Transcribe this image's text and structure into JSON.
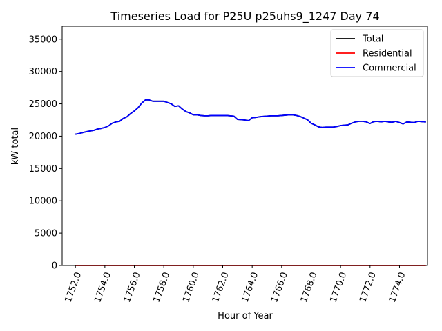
{
  "chart_data": {
    "type": "line",
    "title": "Timeseries Load for P25U p25uhs9_1247  Day 74",
    "xlabel": "Hour of Year",
    "ylabel": "kW total",
    "xlim": [
      1751.1,
      1775.9
    ],
    "ylim": [
      0,
      37000
    ],
    "xticks": [
      1752,
      1754,
      1756,
      1758,
      1760,
      1762,
      1764,
      1766,
      1768,
      1770,
      1772,
      1774
    ],
    "xtick_labels": [
      "1752.0",
      "1754.0",
      "1756.0",
      "1758.0",
      "1760.0",
      "1762.0",
      "1764.0",
      "1766.0",
      "1768.0",
      "1770.0",
      "1772.0",
      "1774.0"
    ],
    "yticks": [
      0,
      5000,
      10000,
      15000,
      20000,
      25000,
      30000,
      35000
    ],
    "ytick_labels": [
      "0",
      "5000",
      "10000",
      "15000",
      "20000",
      "25000",
      "30000",
      "35000"
    ],
    "legend_position": "top-right",
    "series": [
      {
        "name": "Total",
        "color": "#000000",
        "x": [
          1752.0,
          1752.25,
          1752.5,
          1752.75,
          1753.0,
          1753.25,
          1753.5,
          1753.75,
          1754.0,
          1754.25,
          1754.5,
          1754.75,
          1755.0,
          1755.25,
          1755.5,
          1755.75,
          1756.0,
          1756.25,
          1756.5,
          1756.75,
          1757.0,
          1757.25,
          1757.5,
          1757.75,
          1758.0,
          1758.25,
          1758.5,
          1758.75,
          1759.0,
          1759.25,
          1759.5,
          1759.75,
          1760.0,
          1760.25,
          1760.5,
          1760.75,
          1761.0,
          1761.25,
          1761.5,
          1761.75,
          1762.0,
          1762.25,
          1762.5,
          1762.75,
          1763.0,
          1763.25,
          1763.5,
          1763.75,
          1764.0,
          1764.25,
          1764.5,
          1764.75,
          1765.0,
          1765.25,
          1765.5,
          1765.75,
          1766.0,
          1766.25,
          1766.5,
          1766.75,
          1767.0,
          1767.25,
          1767.5,
          1767.75,
          1768.0,
          1768.25,
          1768.5,
          1768.75,
          1769.0,
          1769.25,
          1769.5,
          1769.75,
          1770.0,
          1770.25,
          1770.5,
          1770.75,
          1771.0,
          1771.25,
          1771.5,
          1771.75,
          1772.0,
          1772.25,
          1772.5,
          1772.75,
          1773.0,
          1773.25,
          1773.5,
          1773.75,
          1774.0,
          1774.25,
          1774.5,
          1774.75,
          1775.0,
          1775.25,
          1775.5,
          1775.75
        ],
        "y": [
          20300,
          20400,
          20550,
          20700,
          20800,
          20900,
          21100,
          21200,
          21350,
          21600,
          22000,
          22200,
          22300,
          22750,
          23000,
          23500,
          23900,
          24400,
          25100,
          25600,
          25600,
          25400,
          25400,
          25400,
          25400,
          25200,
          25000,
          24600,
          24700,
          24200,
          23800,
          23600,
          23300,
          23300,
          23200,
          23150,
          23150,
          23200,
          23200,
          23200,
          23200,
          23200,
          23150,
          23100,
          22600,
          22550,
          22500,
          22400,
          22850,
          22900,
          23000,
          23050,
          23100,
          23150,
          23150,
          23150,
          23200,
          23250,
          23300,
          23300,
          23200,
          23050,
          22800,
          22550,
          22000,
          21750,
          21450,
          21350,
          21400,
          21400,
          21400,
          21500,
          21650,
          21700,
          21750,
          22000,
          22200,
          22300,
          22300,
          22200,
          21950,
          22250,
          22300,
          22200,
          22300,
          22200,
          22150,
          22300,
          22100,
          21900,
          22200,
          22150,
          22100,
          22300,
          22250,
          22200
        ]
      },
      {
        "name": "Residential",
        "color": "#ff0000",
        "x": [
          1752.0,
          1775.75
        ],
        "y": [
          0,
          0
        ]
      },
      {
        "name": "Commercial",
        "color": "#0000ff",
        "x": [
          1752.0,
          1752.25,
          1752.5,
          1752.75,
          1753.0,
          1753.25,
          1753.5,
          1753.75,
          1754.0,
          1754.25,
          1754.5,
          1754.75,
          1755.0,
          1755.25,
          1755.5,
          1755.75,
          1756.0,
          1756.25,
          1756.5,
          1756.75,
          1757.0,
          1757.25,
          1757.5,
          1757.75,
          1758.0,
          1758.25,
          1758.5,
          1758.75,
          1759.0,
          1759.25,
          1759.5,
          1759.75,
          1760.0,
          1760.25,
          1760.5,
          1760.75,
          1761.0,
          1761.25,
          1761.5,
          1761.75,
          1762.0,
          1762.25,
          1762.5,
          1762.75,
          1763.0,
          1763.25,
          1763.5,
          1763.75,
          1764.0,
          1764.25,
          1764.5,
          1764.75,
          1765.0,
          1765.25,
          1765.5,
          1765.75,
          1766.0,
          1766.25,
          1766.5,
          1766.75,
          1767.0,
          1767.25,
          1767.5,
          1767.75,
          1768.0,
          1768.25,
          1768.5,
          1768.75,
          1769.0,
          1769.25,
          1769.5,
          1769.75,
          1770.0,
          1770.25,
          1770.5,
          1770.75,
          1771.0,
          1771.25,
          1771.5,
          1771.75,
          1772.0,
          1772.25,
          1772.5,
          1772.75,
          1773.0,
          1773.25,
          1773.5,
          1773.75,
          1774.0,
          1774.25,
          1774.5,
          1774.75,
          1775.0,
          1775.25,
          1775.5,
          1775.75
        ],
        "y": [
          20300,
          20400,
          20550,
          20700,
          20800,
          20900,
          21100,
          21200,
          21350,
          21600,
          22000,
          22200,
          22300,
          22750,
          23000,
          23500,
          23900,
          24400,
          25100,
          25600,
          25600,
          25400,
          25400,
          25400,
          25400,
          25200,
          25000,
          24600,
          24700,
          24200,
          23800,
          23600,
          23300,
          23300,
          23200,
          23150,
          23150,
          23200,
          23200,
          23200,
          23200,
          23200,
          23150,
          23100,
          22600,
          22550,
          22500,
          22400,
          22850,
          22900,
          23000,
          23050,
          23100,
          23150,
          23150,
          23150,
          23200,
          23250,
          23300,
          23300,
          23200,
          23050,
          22800,
          22550,
          22000,
          21750,
          21450,
          21350,
          21400,
          21400,
          21400,
          21500,
          21650,
          21700,
          21750,
          22000,
          22200,
          22300,
          22300,
          22200,
          21950,
          22250,
          22300,
          22200,
          22300,
          22200,
          22150,
          22300,
          22100,
          21900,
          22200,
          22150,
          22100,
          22300,
          22250,
          22200
        ]
      }
    ]
  }
}
